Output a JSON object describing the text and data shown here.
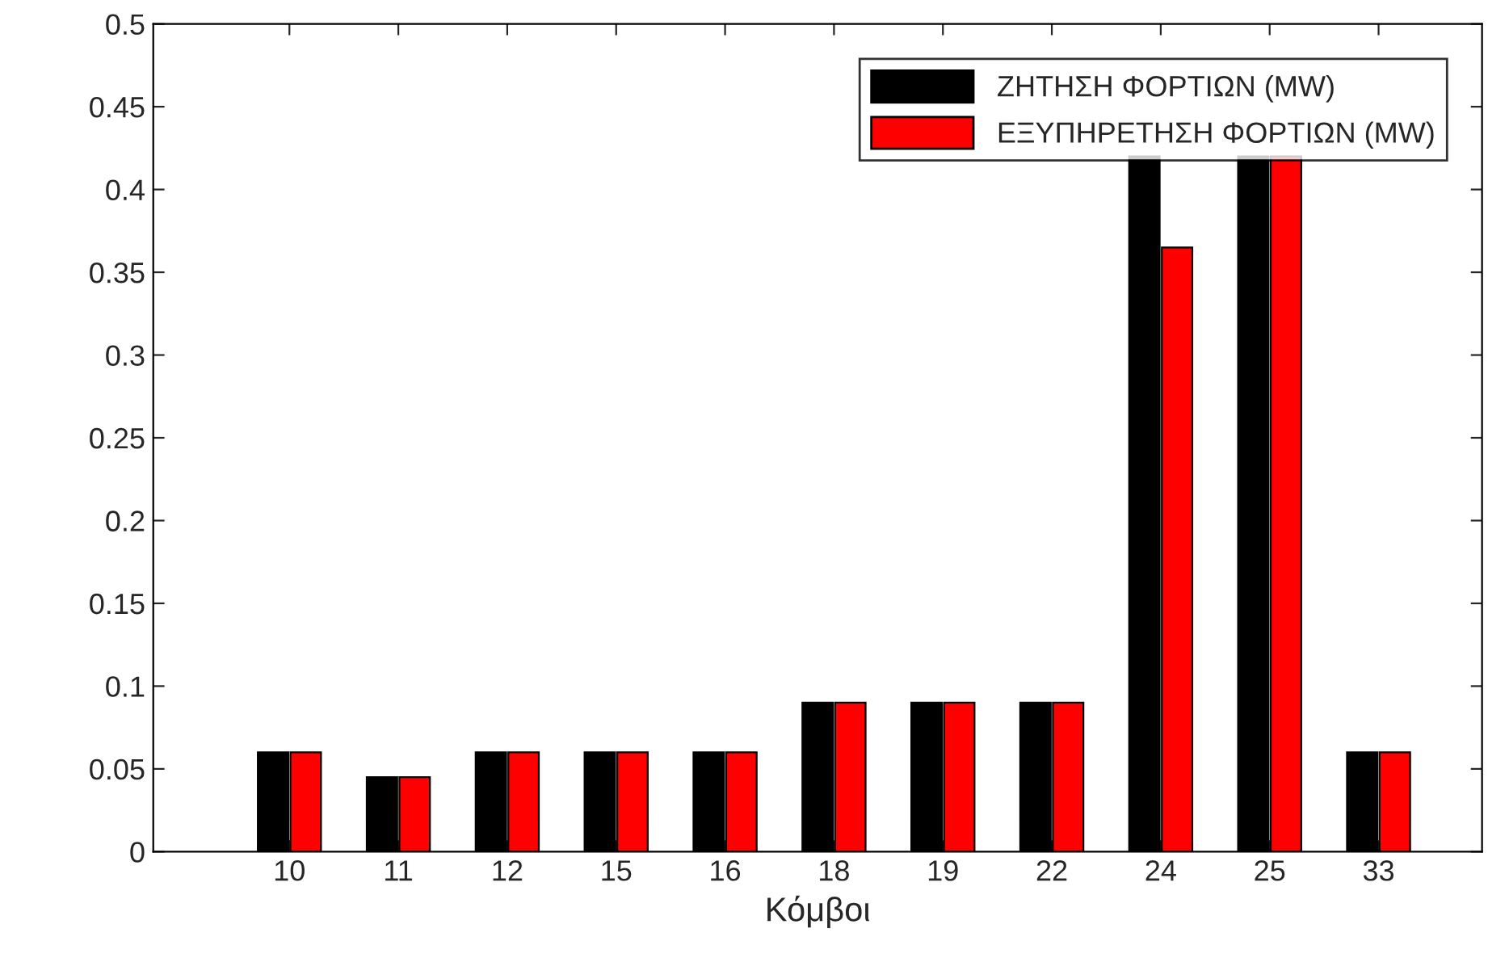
{
  "chart_data": {
    "type": "bar",
    "xlabel": "Κόμβοι",
    "categories": [
      "10",
      "11",
      "12",
      "15",
      "16",
      "18",
      "19",
      "22",
      "24",
      "25",
      "33"
    ],
    "series": [
      {
        "name": "ΖΗΤΗΣΗ ΦΟΡΤΙΩΝ (MW)",
        "color": "#000000",
        "values": [
          0.06,
          0.045,
          0.06,
          0.06,
          0.06,
          0.09,
          0.09,
          0.09,
          0.42,
          0.42,
          0.06
        ]
      },
      {
        "name": "ΕΞΥΠΗΡΕΤΗΣΗ ΦΟΡΤΙΩΝ (MW)",
        "color": "#ff0000",
        "values": [
          0.06,
          0.045,
          0.06,
          0.06,
          0.06,
          0.09,
          0.09,
          0.09,
          0.365,
          0.42,
          0.06
        ]
      }
    ],
    "ylim": [
      0,
      0.5
    ],
    "yticks": [
      0,
      0.05,
      0.1,
      0.15,
      0.2,
      0.25,
      0.3,
      0.35,
      0.4,
      0.45,
      0.5
    ],
    "grid": false,
    "legend": "top right"
  }
}
